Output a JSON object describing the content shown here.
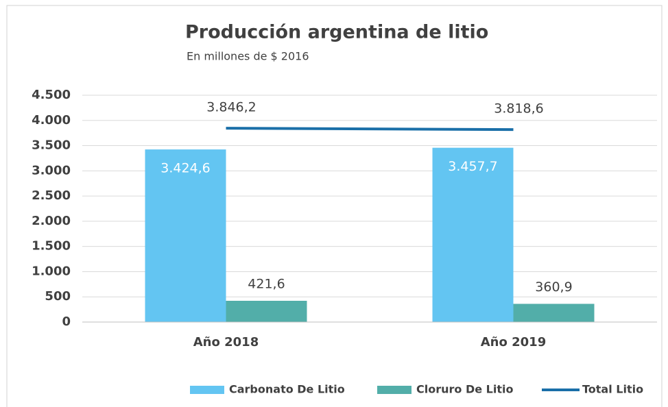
{
  "chart_data": {
    "type": "bar",
    "title": "Producción argentina de litio",
    "subtitle": "En millones de $ 2016",
    "categories": [
      "Año 2018",
      "Año 2019"
    ],
    "series": [
      {
        "name": "Carbonato De Litio",
        "color": "#63c5f2",
        "values": [
          3424.6,
          3457.7
        ],
        "value_labels": [
          "3.424,6",
          "3.457,7"
        ]
      },
      {
        "name": "Cloruro De Litio",
        "color": "#52aea9",
        "values": [
          421.6,
          360.9
        ],
        "value_labels": [
          "421,6",
          "360,9"
        ]
      },
      {
        "name": "Total Litio",
        "type": "line",
        "color": "#1a6fa8",
        "values": [
          3846.2,
          3818.6
        ],
        "value_labels": [
          "3.846,2",
          "3.818,6"
        ]
      }
    ],
    "ylim": [
      0,
      4500
    ],
    "yticks": [
      0,
      500,
      {
        "value": 1000,
        "label": "1.000"
      },
      {
        "value": 1500,
        "label": "1.500"
      },
      {
        "value": 2000,
        "label": "2.000"
      },
      {
        "value": 2500,
        "label": "2.500"
      },
      {
        "value": 3000,
        "label": "3.000"
      },
      {
        "value": 3500,
        "label": "3.500"
      },
      {
        "value": 4000,
        "label": "4.000"
      },
      {
        "value": 4500,
        "label": "4.500"
      }
    ],
    "grid": true,
    "legend": "bottom"
  }
}
